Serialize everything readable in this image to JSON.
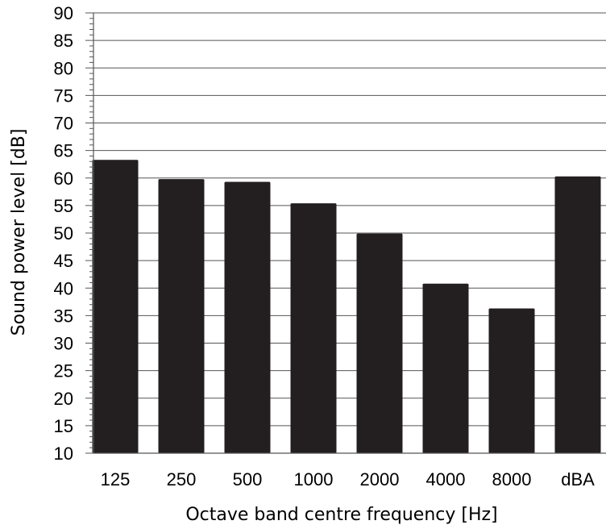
{
  "chart_data": {
    "type": "bar",
    "categories": [
      "125",
      "250",
      "500",
      "1000",
      "2000",
      "4000",
      "8000",
      "dBA"
    ],
    "values": [
      63.3,
      59.8,
      59.3,
      55.4,
      49.9,
      40.8,
      36.3,
      60.3
    ],
    "xlabel": "Octave band centre frequency [Hz]",
    "ylabel": "Sound power level [dB]",
    "ylim": [
      10,
      90
    ],
    "y_ticks": [
      10,
      15,
      20,
      25,
      30,
      35,
      40,
      45,
      50,
      55,
      60,
      65,
      70,
      75,
      80,
      85,
      90
    ],
    "grid": true,
    "legend": "none",
    "colors": {
      "bar": "#231f20",
      "grid": "#555555",
      "axis": "#555555"
    }
  }
}
